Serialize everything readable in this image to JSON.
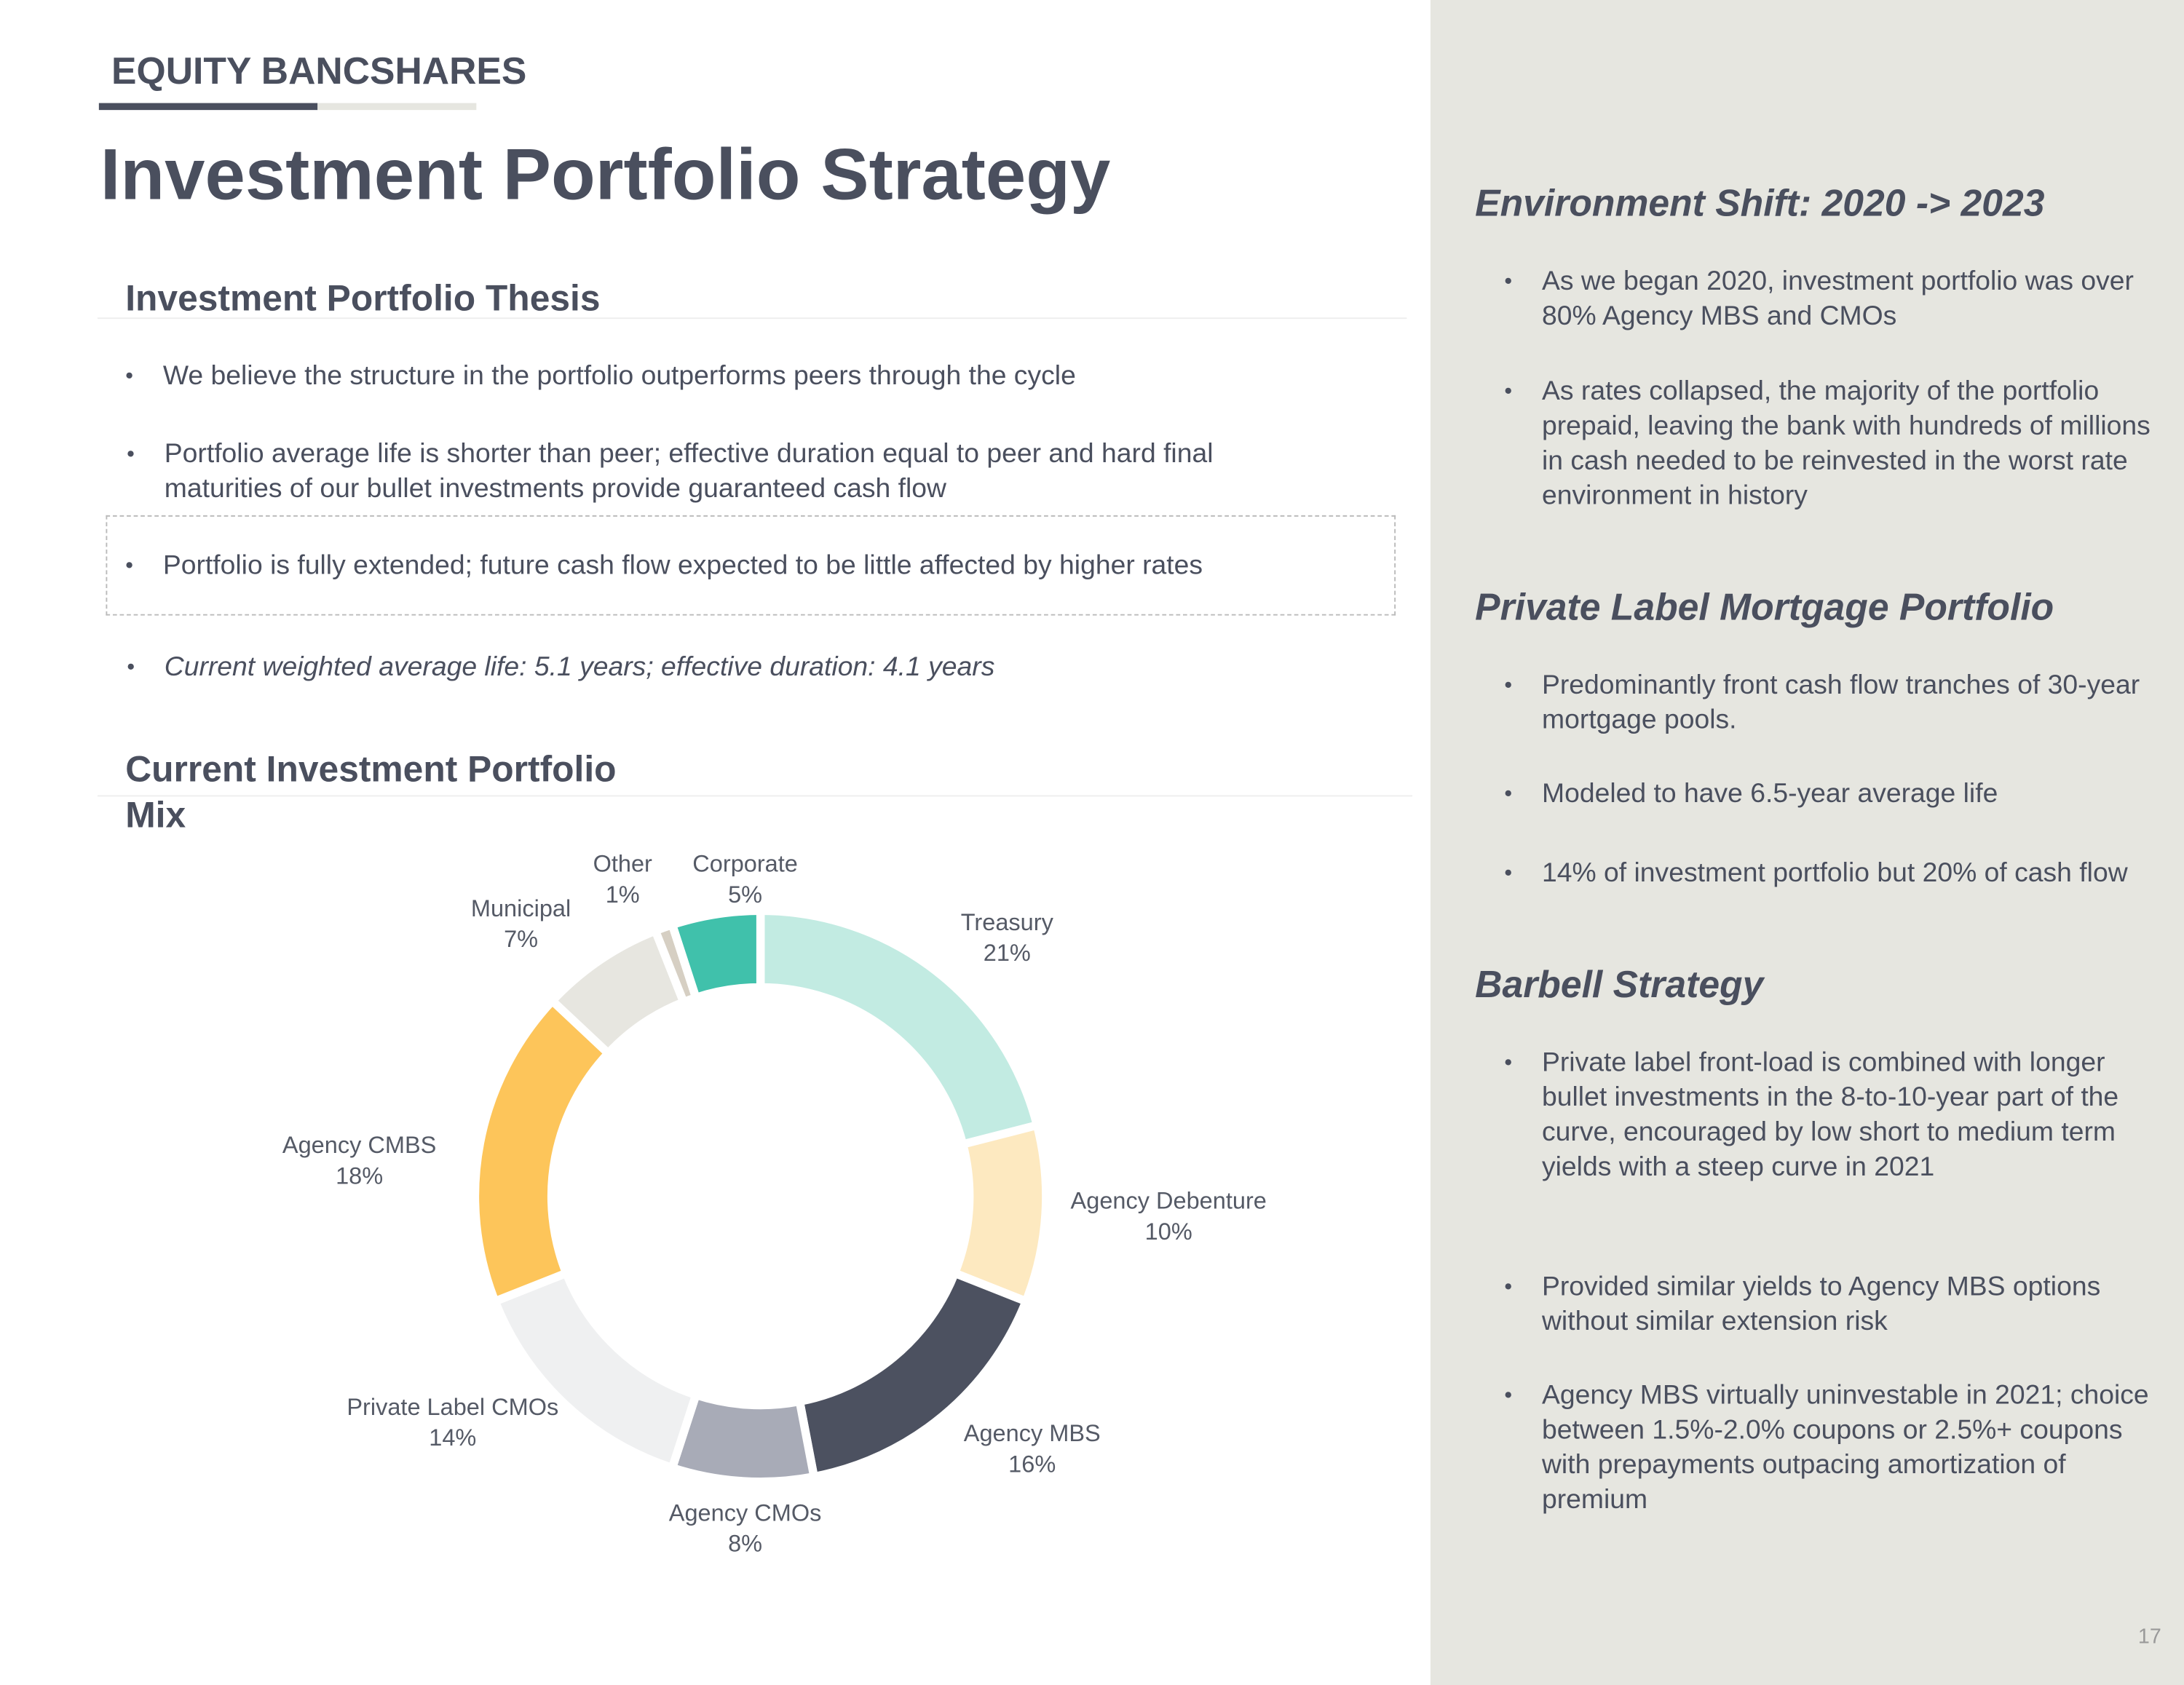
{
  "header": {
    "company": "EQUITY BANCSHARES",
    "title": "Investment Portfolio Strategy"
  },
  "thesis": {
    "heading": "Investment Portfolio Thesis",
    "bullets": [
      "We believe the structure in the portfolio outperforms peers through the cycle",
      "Portfolio average life is shorter than peer; effective duration equal to peer and hard final maturities of our bullet investments provide guaranteed cash flow",
      "Portfolio is fully extended; future cash flow expected to be little affected by higher rates",
      "Current weighted average life: 5.1 years; effective duration: 4.1 years"
    ]
  },
  "mix": {
    "heading": "Current Investment Portfolio Mix"
  },
  "chart_data": {
    "type": "donut",
    "categories": [
      "Treasury",
      "Agency Debenture",
      "Agency MBS",
      "Agency CMOs",
      "Private Label CMOs",
      "Agency CMBS",
      "Municipal",
      "Other",
      "Corporate"
    ],
    "values": [
      21,
      10,
      16,
      8,
      14,
      18,
      7,
      1,
      5
    ],
    "value_labels": [
      "21%",
      "10%",
      "16%",
      "8%",
      "14%",
      "18%",
      "7%",
      "1%",
      "5%"
    ],
    "colors": [
      "#c2ebe2",
      "#fde9c0",
      "#4c5160",
      "#a8abb7",
      "#eff0f1",
      "#fdc55a",
      "#e7e6e0",
      "#d6cfc3",
      "#40c1ab"
    ]
  },
  "sections": [
    {
      "heading": "Environment Shift: 2020 -> 2023",
      "bullets": [
        "As we began 2020, investment portfolio was over 80% Agency MBS and CMOs",
        "As rates collapsed, the majority of the portfolio prepaid, leaving the bank with hundreds of millions in cash needed to be reinvested in the worst rate environment in history"
      ]
    },
    {
      "heading": "Private Label Mortgage Portfolio",
      "bullets": [
        "Predominantly front cash flow tranches of 30-year mortgage pools.",
        "Modeled to have 6.5-year average life",
        "14% of investment portfolio but 20% of cash flow"
      ]
    },
    {
      "heading": "Barbell Strategy",
      "bullets": [
        "Private label front-load is combined with longer bullet investments in the 8-to-10-year part of the curve, encouraged by low short to medium term yields with a steep curve in 2021",
        "Provided similar yields to Agency MBS options without similar extension risk",
        "Agency MBS virtually uninvestable in 2021; choice between 1.5%-2.0% coupons or 2.5%+ coupons with prepayments outpacing amortization of premium"
      ]
    }
  ],
  "page_number": "17"
}
